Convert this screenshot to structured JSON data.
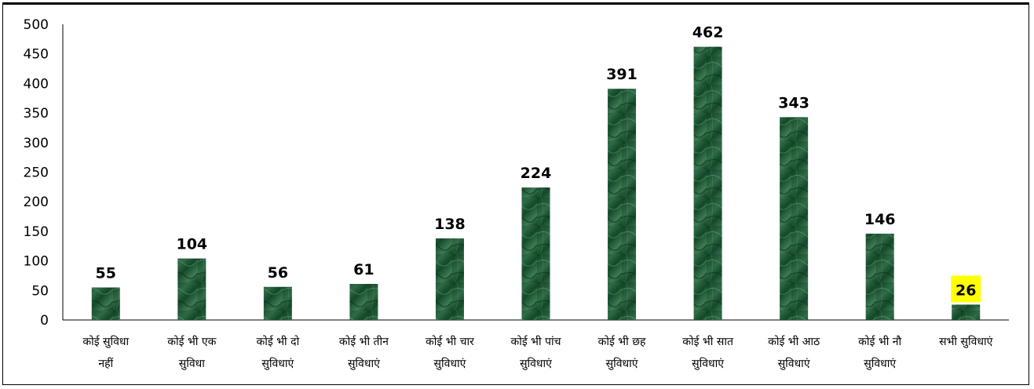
{
  "chart_data": {
    "type": "bar",
    "categories": [
      [
        "कोई सुविधा",
        "नहीं"
      ],
      [
        "कोई भी एक",
        "सुविधा"
      ],
      [
        "कोई भी दो",
        "सुविधाएं"
      ],
      [
        "कोई भी तीन",
        "सुविधाएं"
      ],
      [
        "कोई भी चार",
        "सुविधाएं"
      ],
      [
        "कोई भी पांच",
        "सुविधाएं"
      ],
      [
        "कोई भी छह",
        "सुविधाएं"
      ],
      [
        "कोई भी सात",
        "सुविधाएं"
      ],
      [
        "कोई भी आठ",
        "सुविधाएं"
      ],
      [
        "कोई भी नौ",
        "सुविधाएं"
      ],
      [
        "सभी सुविधाएं"
      ]
    ],
    "values": [
      55,
      104,
      56,
      61,
      138,
      224,
      391,
      462,
      343,
      146,
      26
    ],
    "ylim": [
      0,
      500
    ],
    "yticks": [
      0,
      50,
      100,
      150,
      200,
      250,
      300,
      350,
      400,
      450,
      500
    ],
    "grid": false,
    "legend": "none",
    "highlighted_label_index": 10,
    "colors": {
      "bar_dark": "#0f3d22",
      "bar_mid": "#2f6b45",
      "bar_light": "#5d9a70",
      "highlight": "#ffff00",
      "axis": "#000000"
    }
  }
}
